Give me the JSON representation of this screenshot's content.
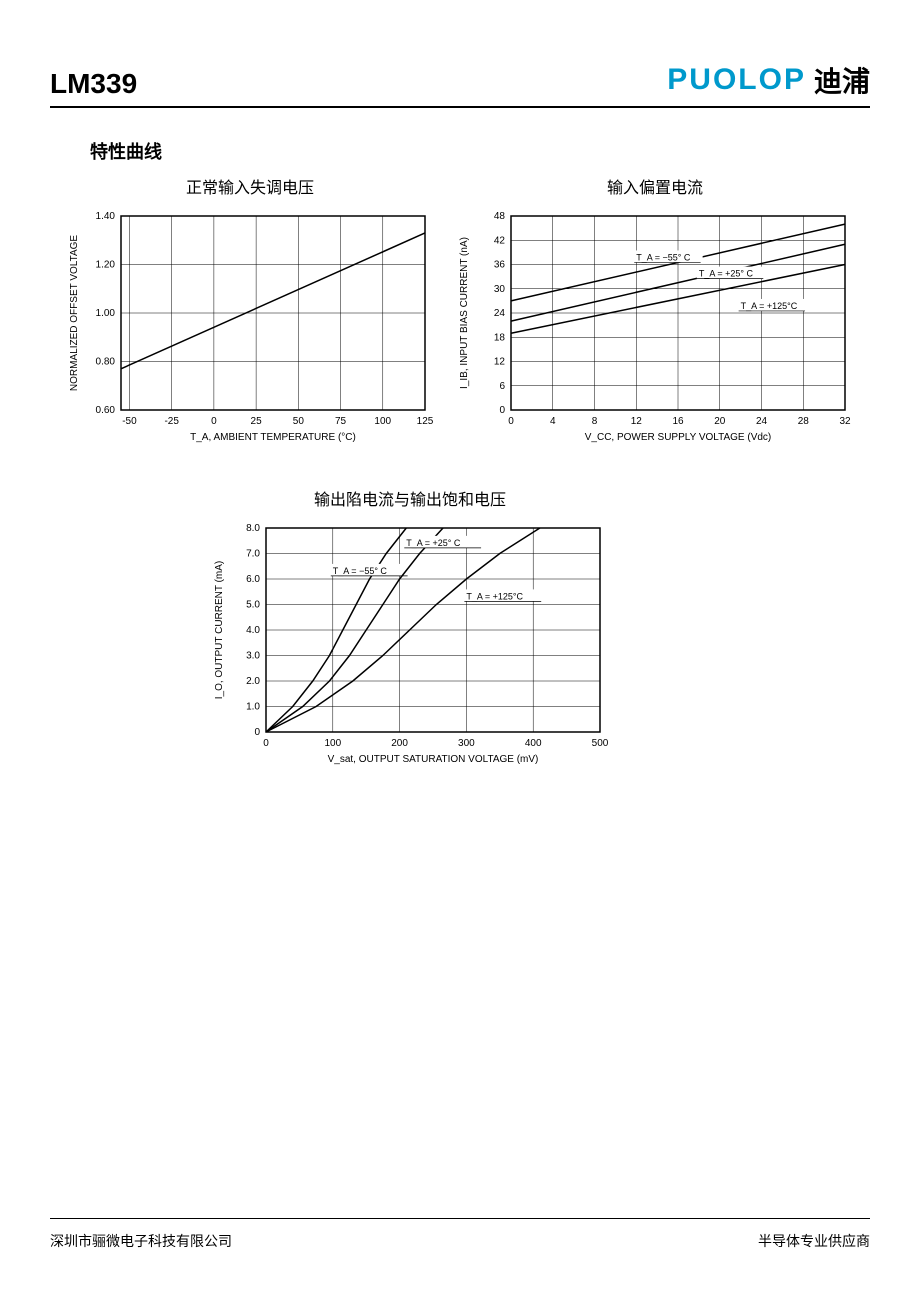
{
  "header": {
    "part_no": "LM339",
    "brand_logo": "PUOLOP",
    "brand_cn": "迪浦"
  },
  "section_title": "特性曲线",
  "chart1": {
    "type": "line",
    "title": "正常输入失调电压",
    "xlabel": "T_A, AMBIENT TEMPERATURE (°C)",
    "ylabel": "NORMALIZED OFFSET VOLTAGE",
    "xlim": [
      -55,
      125
    ],
    "ylim": [
      0.6,
      1.4
    ],
    "xticks": [
      -50,
      -25,
      0,
      25,
      50,
      75,
      100,
      125
    ],
    "yticks": [
      0.6,
      0.8,
      1.0,
      1.2,
      1.4
    ],
    "grid_color": "#000000",
    "line_color": "#000000",
    "line_width": 1.5,
    "background_color": "#ffffff",
    "series": [
      {
        "points": [
          [
            -55,
            0.77
          ],
          [
            125,
            1.33
          ]
        ]
      }
    ]
  },
  "chart2": {
    "type": "line",
    "title": "输入偏置电流",
    "xlabel": "V_CC, POWER SUPPLY VOLTAGE (Vdc)",
    "ylabel": "I_IB, INPUT BIAS CURRENT (nA)",
    "xlim": [
      0,
      32
    ],
    "ylim": [
      0,
      48
    ],
    "xticks": [
      0,
      4.0,
      8.0,
      12,
      16,
      20,
      24,
      28,
      32
    ],
    "yticks": [
      0,
      6.0,
      12,
      18,
      24,
      30,
      36,
      42,
      48
    ],
    "grid_color": "#000000",
    "line_color": "#000000",
    "line_width": 1.5,
    "background_color": "#ffffff",
    "series": [
      {
        "label": "T_A = −55° C",
        "label_x": 12,
        "label_y": 37,
        "points": [
          [
            0,
            27
          ],
          [
            32,
            46
          ]
        ]
      },
      {
        "label": "T_A = +25° C",
        "label_x": 18,
        "label_y": 33,
        "points": [
          [
            0,
            22
          ],
          [
            32,
            41
          ]
        ]
      },
      {
        "label": "T_A = +125°C",
        "label_x": 22,
        "label_y": 25,
        "points": [
          [
            0,
            19
          ],
          [
            32,
            36
          ]
        ]
      }
    ]
  },
  "chart3": {
    "type": "line",
    "title": "输出陷电流与输出饱和电压",
    "xlabel": "V_sat, OUTPUT SATURATION VOLTAGE (mV)",
    "ylabel": "I_O, OUTPUT CURRENT (mA)",
    "xlim": [
      0,
      500
    ],
    "ylim": [
      0,
      8.0
    ],
    "xticks": [
      0,
      100,
      200,
      300,
      400,
      500
    ],
    "yticks": [
      0,
      1.0,
      2.0,
      3.0,
      4.0,
      5.0,
      6.0,
      7.0,
      8.0
    ],
    "grid_color": "#000000",
    "line_color": "#000000",
    "line_width": 1.5,
    "background_color": "#ffffff",
    "series": [
      {
        "label": "T_A  =  −55° C",
        "label_x": 100,
        "label_y": 6.2,
        "points": [
          [
            0,
            0
          ],
          [
            40,
            1
          ],
          [
            70,
            2
          ],
          [
            95,
            3
          ],
          [
            115,
            4
          ],
          [
            135,
            5
          ],
          [
            155,
            6
          ],
          [
            180,
            7
          ],
          [
            210,
            8
          ]
        ]
      },
      {
        "label": "T_A  =  +25° C",
        "label_x": 210,
        "label_y": 7.3,
        "points": [
          [
            0,
            0
          ],
          [
            55,
            1
          ],
          [
            95,
            2
          ],
          [
            125,
            3
          ],
          [
            150,
            4
          ],
          [
            175,
            5
          ],
          [
            200,
            6
          ],
          [
            230,
            7
          ],
          [
            265,
            8
          ]
        ]
      },
      {
        "label": "T_A  =  +125°C",
        "label_x": 300,
        "label_y": 5.2,
        "points": [
          [
            0,
            0
          ],
          [
            75,
            1
          ],
          [
            130,
            2
          ],
          [
            175,
            3
          ],
          [
            215,
            4
          ],
          [
            255,
            5
          ],
          [
            300,
            6
          ],
          [
            350,
            7
          ],
          [
            410,
            8
          ]
        ]
      }
    ]
  },
  "footer": {
    "left": "深圳市骊微电子科技有限公司",
    "right": "半导体专业供应商"
  }
}
